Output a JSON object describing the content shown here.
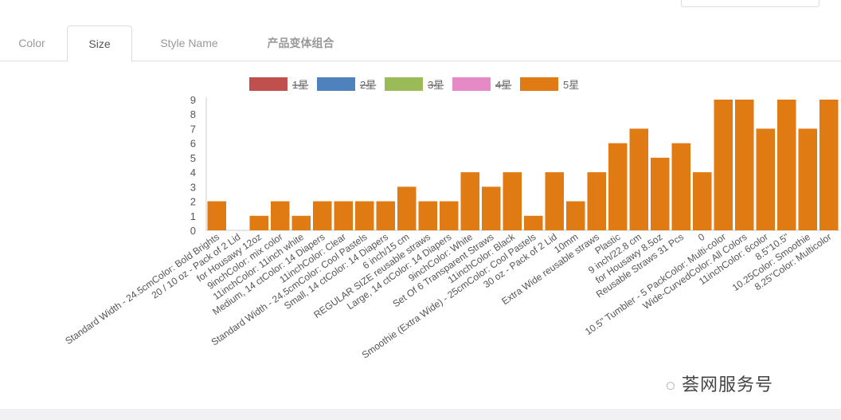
{
  "tabs": [
    {
      "label": "Color"
    },
    {
      "label": "Size"
    },
    {
      "label": "Style Name"
    },
    {
      "label": "产品变体组合"
    }
  ],
  "active_tab": "Size",
  "watermark": "荟网服务号",
  "chart_data": {
    "type": "bar",
    "title": "",
    "xlabel": "",
    "ylabel": "",
    "ylim": [
      0,
      9
    ],
    "yticks": [
      "0",
      "1",
      "2",
      "3",
      "4",
      "5",
      "6",
      "7",
      "8",
      "9"
    ],
    "legend": [
      {
        "name": "1星",
        "color": "#c0504d",
        "hidden": true
      },
      {
        "name": "2星",
        "color": "#4f81bd",
        "hidden": true
      },
      {
        "name": "3星",
        "color": "#9bbb59",
        "hidden": true
      },
      {
        "name": "4星",
        "color": "#e68ac7",
        "hidden": true
      },
      {
        "name": "5星",
        "color": "#e07b14",
        "hidden": false
      }
    ],
    "legend_position": "top",
    "categories": [
      "Standard Width - 24.5cmColor: Bold Brights",
      "20 / 10 oz - Pack of 2 Lid",
      "for Housawy 12oz",
      "9inchColor: mix color",
      "11inchColor: 11inch white",
      "Medium, 14 ctColor: 14 Diapers",
      "11inchColor: Clear",
      "Standard Width - 24.5cmColor: Cool Pastels",
      "Small, 14 ctColor: 14 Diapers",
      "6 inch/15 cm",
      "REGULAR SIZE reusable straws",
      "Large, 14 ctColor: 14 Diapers",
      "9inchColor: White",
      "Set Of 6 Transparent Straws",
      "11inchColor: Black",
      "Smoothie (Extra Wide) - 25cmColor: Cool Pastels",
      "30 oz - Pack of 2 Lid",
      "10mm",
      "Extra Wide reusable straws",
      "Plastic",
      "9 inch/22.8 cm",
      "for Housawy 8.5oz",
      "Reusable Straws 31 Pcs",
      "0",
      "10.5\" Tumbler - 5 PackColor: Multi-color",
      "Wide-CurvedColor: All Colors",
      "11inchColor: 6color",
      "8.5\"10.5\"",
      "10.25Color: Smoothie",
      "8.25\"Color: Multicolor"
    ],
    "series": [
      {
        "name": "5星",
        "values": [
          2,
          0,
          1,
          2,
          1,
          2,
          2,
          2,
          2,
          3,
          2,
          2,
          4,
          3,
          4,
          1,
          4,
          2,
          4,
          6,
          7,
          5,
          6,
          4,
          9,
          9,
          7,
          9,
          7,
          9
        ]
      }
    ]
  }
}
